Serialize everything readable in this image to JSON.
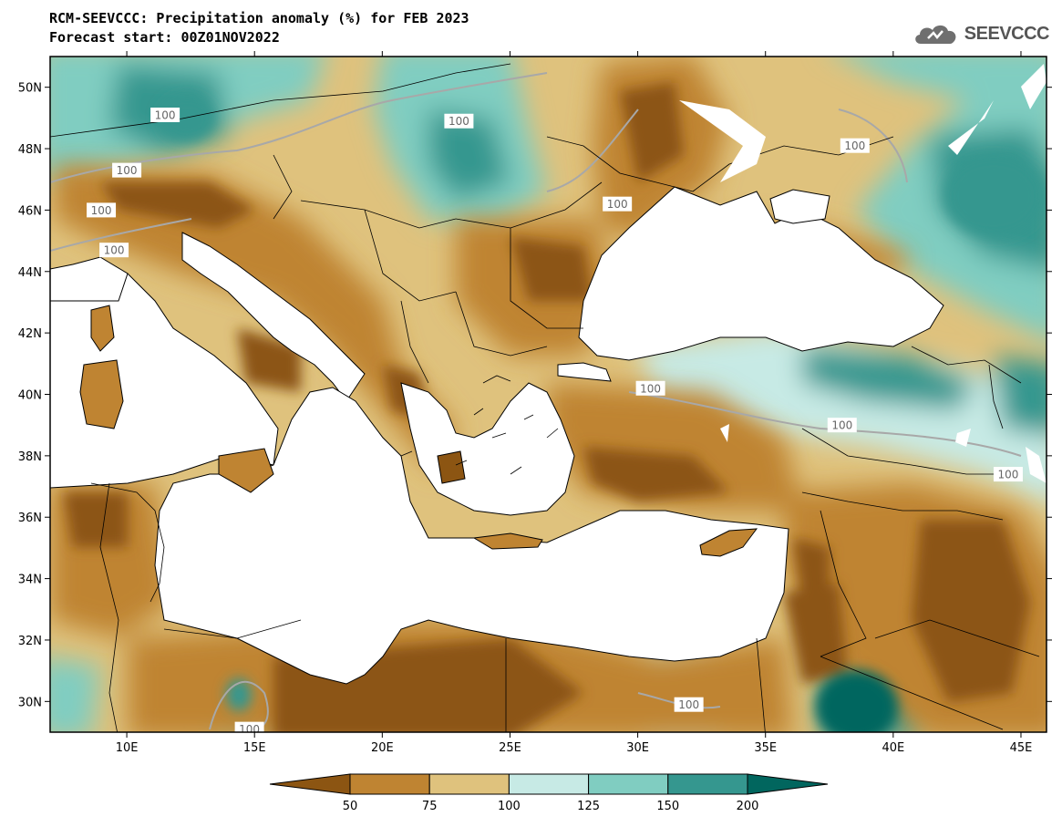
{
  "title": {
    "line1": "RCM-SEEVCCC: Precipitation anomaly (%) for FEB 2023",
    "line2": "Forecast start: 00Z01NOV2022"
  },
  "logo": {
    "text": "SEEVCCC",
    "icon": "cloud-icon"
  },
  "map": {
    "lon_range": [
      7,
      46
    ],
    "lat_range": [
      29,
      51
    ],
    "x_ticks": [
      {
        "lon": 10,
        "label": "10E"
      },
      {
        "lon": 15,
        "label": "15E"
      },
      {
        "lon": 20,
        "label": "20E"
      },
      {
        "lon": 25,
        "label": "25E"
      },
      {
        "lon": 30,
        "label": "30E"
      },
      {
        "lon": 35,
        "label": "35E"
      },
      {
        "lon": 40,
        "label": "40E"
      },
      {
        "lon": 45,
        "label": "45E"
      }
    ],
    "y_ticks": [
      {
        "lat": 50,
        "label": "50N"
      },
      {
        "lat": 48,
        "label": "48N"
      },
      {
        "lat": 46,
        "label": "46N"
      },
      {
        "lat": 44,
        "label": "44N"
      },
      {
        "lat": 42,
        "label": "42N"
      },
      {
        "lat": 40,
        "label": "40N"
      },
      {
        "lat": 38,
        "label": "38N"
      },
      {
        "lat": 36,
        "label": "36N"
      },
      {
        "lat": 34,
        "label": "34N"
      },
      {
        "lat": 32,
        "label": "32N"
      },
      {
        "lat": 30,
        "label": "30N"
      }
    ],
    "contour_labels": [
      {
        "lon": 11.5,
        "lat": 49.1,
        "text": "100"
      },
      {
        "lon": 23.0,
        "lat": 48.9,
        "text": "100"
      },
      {
        "lon": 38.5,
        "lat": 48.1,
        "text": "100"
      },
      {
        "lon": 10.0,
        "lat": 47.3,
        "text": "100"
      },
      {
        "lon": 9.0,
        "lat": 46.0,
        "text": "100"
      },
      {
        "lon": 29.2,
        "lat": 46.2,
        "text": "100"
      },
      {
        "lon": 9.5,
        "lat": 44.7,
        "text": "100"
      },
      {
        "lon": 30.5,
        "lat": 40.2,
        "text": "100"
      },
      {
        "lon": 38.0,
        "lat": 39.0,
        "text": "100"
      },
      {
        "lon": 44.5,
        "lat": 37.4,
        "text": "100"
      },
      {
        "lon": 32.0,
        "lat": 29.9,
        "text": "100"
      },
      {
        "lon": 14.8,
        "lat": 29.1,
        "text": "100"
      }
    ]
  },
  "colorbar": {
    "labels": [
      "50",
      "75",
      "100",
      "125",
      "150",
      "200"
    ],
    "colors": [
      "#8c5512",
      "#bf8432",
      "#dfc27d",
      "#c7eae5",
      "#80cdc1",
      "#35978f",
      "#01665e"
    ]
  },
  "colors": {
    "sea": "#ffffff",
    "coast": "#000000",
    "contour": "#a8a8a8"
  }
}
